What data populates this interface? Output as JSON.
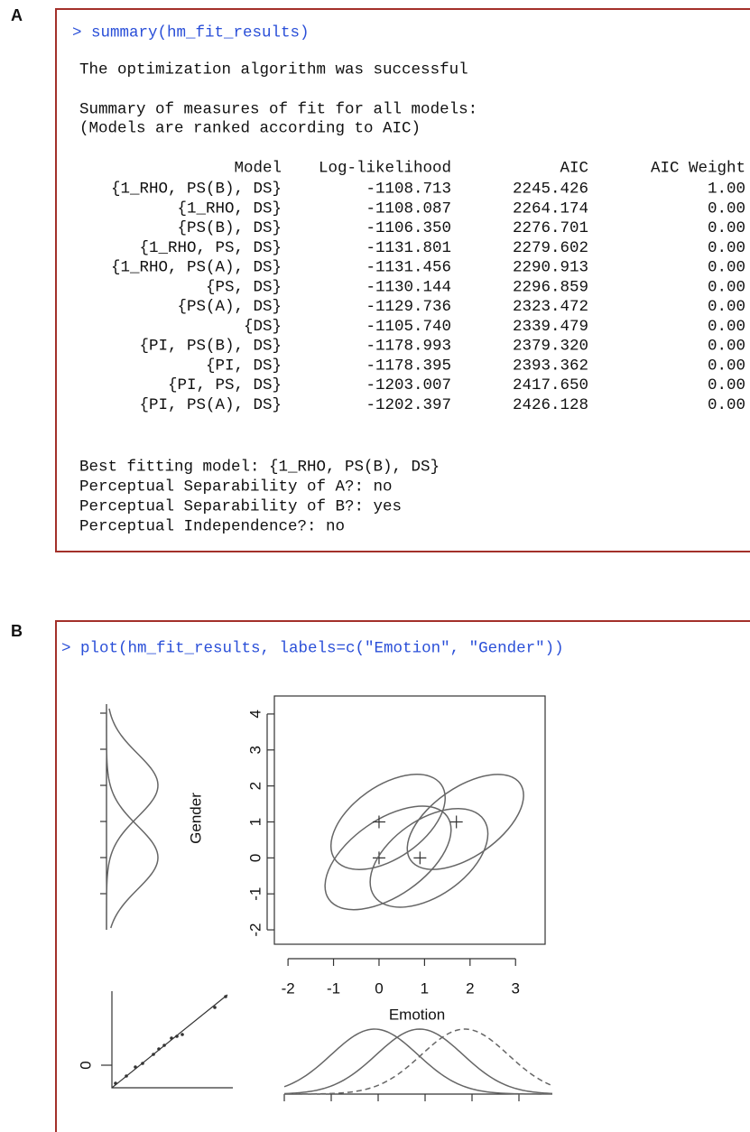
{
  "panel_a": {
    "label": "A",
    "command": "> summary(hm_fit_results)",
    "status": "The optimization algorithm was successful",
    "intro": [
      "Summary of measures of fit for all models:",
      "(Models are ranked according to AIC)"
    ],
    "table": {
      "columns": [
        "Model",
        "Log-likelihood",
        "AIC",
        "AIC Weight"
      ],
      "rows": [
        [
          "{1_RHO, PS(B), DS}",
          "-1108.713",
          "2245.426",
          "1.00"
        ],
        [
          "{1_RHO, DS}",
          "-1108.087",
          "2264.174",
          "0.00"
        ],
        [
          "{PS(B), DS}",
          "-1106.350",
          "2276.701",
          "0.00"
        ],
        [
          "{1_RHO, PS, DS}",
          "-1131.801",
          "2279.602",
          "0.00"
        ],
        [
          "{1_RHO, PS(A), DS}",
          "-1131.456",
          "2290.913",
          "0.00"
        ],
        [
          "{PS, DS}",
          "-1130.144",
          "2296.859",
          "0.00"
        ],
        [
          "{PS(A), DS}",
          "-1129.736",
          "2323.472",
          "0.00"
        ],
        [
          "{DS}",
          "-1105.740",
          "2339.479",
          "0.00"
        ],
        [
          "{PI, PS(B), DS}",
          "-1178.993",
          "2379.320",
          "0.00"
        ],
        [
          "{PI, DS}",
          "-1178.395",
          "2393.362",
          "0.00"
        ],
        [
          "{PI, PS, DS}",
          "-1203.007",
          "2417.650",
          "0.00"
        ],
        [
          "{PI, PS(A), DS}",
          "-1202.397",
          "2426.128",
          "0.00"
        ]
      ]
    },
    "footer": [
      "Best fitting model: {1_RHO, PS(B), DS}",
      "Perceptual Separability of A?: no",
      "Perceptual Separability of B?: yes",
      "Perceptual Independence?: no"
    ]
  },
  "panel_b": {
    "label": "B",
    "command": "> plot(hm_fit_results, labels=c(\"Emotion\", \"Gender\"))",
    "qq_label": "0"
  },
  "chart_data": {
    "type": "scatter",
    "x_label": "Emotion",
    "y_label": "Gender",
    "x": [
      0,
      0,
      0.9,
      1.7
    ],
    "y": [
      0,
      1,
      0,
      1
    ],
    "xlim": [
      -2.3,
      3.65
    ],
    "ylim": [
      -2.4,
      4.5
    ],
    "xticks": [
      -2,
      -1,
      0,
      1,
      2,
      3
    ],
    "yticks": [
      -2,
      -1,
      0,
      1,
      2,
      3,
      4
    ]
  }
}
